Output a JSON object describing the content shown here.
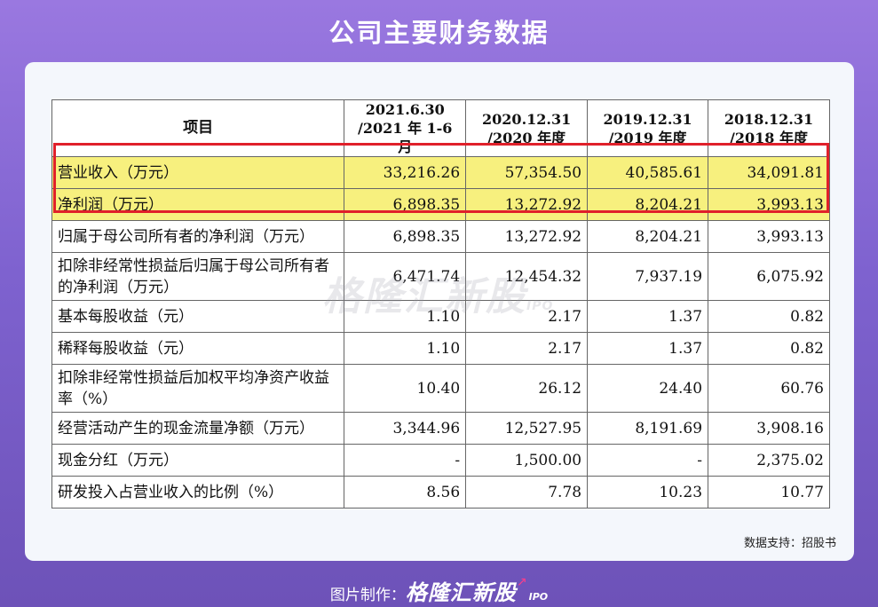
{
  "title": "公司主要财务数据",
  "table": {
    "headers": [
      "项目",
      "2021.6.30\n/2021 年 1-6 月",
      "2020.12.31\n/2020 年度",
      "2019.12.31\n/2019 年度",
      "2018.12.31\n/2018 年度"
    ],
    "header_lines": [
      [
        "项目"
      ],
      [
        "2021.6.30",
        "/2021 年 1-6 月"
      ],
      [
        "2020.12.31",
        "/2020 年度"
      ],
      [
        "2019.12.31",
        "/2019 年度"
      ],
      [
        "2018.12.31",
        "/2018 年度"
      ]
    ],
    "rows": [
      {
        "label": "营业收入（万元）",
        "values": [
          "33,216.26",
          "57,354.50",
          "40,585.61",
          "34,091.81"
        ],
        "highlighted": true
      },
      {
        "label": "净利润（万元）",
        "values": [
          "6,898.35",
          "13,272.92",
          "8,204.21",
          "3,993.13"
        ],
        "highlighted": true
      },
      {
        "label": "归属于母公司所有者的净利润（万元）",
        "values": [
          "6,898.35",
          "13,272.92",
          "8,204.21",
          "3,993.13"
        ],
        "highlighted": false
      },
      {
        "label": "扣除非经常性损益后归属于母公司所有者的净利润（万元）",
        "values": [
          "6,471.74",
          "12,454.32",
          "7,937.19",
          "6,075.92"
        ],
        "highlighted": false
      },
      {
        "label": "基本每股收益（元）",
        "values": [
          "1.10",
          "2.17",
          "1.37",
          "0.82"
        ],
        "highlighted": false
      },
      {
        "label": "稀释每股收益（元）",
        "values": [
          "1.10",
          "2.17",
          "1.37",
          "0.82"
        ],
        "highlighted": false
      },
      {
        "label": "扣除非经常性损益后加权平均净资产收益率（%）",
        "values": [
          "10.40",
          "26.12",
          "24.40",
          "60.76"
        ],
        "highlighted": false
      },
      {
        "label": "经营活动产生的现金流量净额（万元）",
        "values": [
          "3,344.96",
          "12,527.95",
          "8,191.69",
          "3,908.16"
        ],
        "highlighted": false
      },
      {
        "label": "现金分红（万元）",
        "values": [
          "-",
          "1,500.00",
          "-",
          "2,375.02"
        ],
        "highlighted": false
      },
      {
        "label": "研发投入占营业收入的比例（%）",
        "values": [
          "8.56",
          "7.78",
          "10.23",
          "10.77"
        ],
        "highlighted": false
      }
    ]
  },
  "watermark": {
    "text": "格隆汇新股",
    "suffix": "IPO"
  },
  "source_note": "数据支持：招股书",
  "footer": {
    "prefix": "图片制作：",
    "brand": "格隆汇新股",
    "suffix": "IPO"
  },
  "colors": {
    "highlight": "#f7f07e",
    "highlight_border": "#e0202a",
    "background": "#7e62cf"
  }
}
